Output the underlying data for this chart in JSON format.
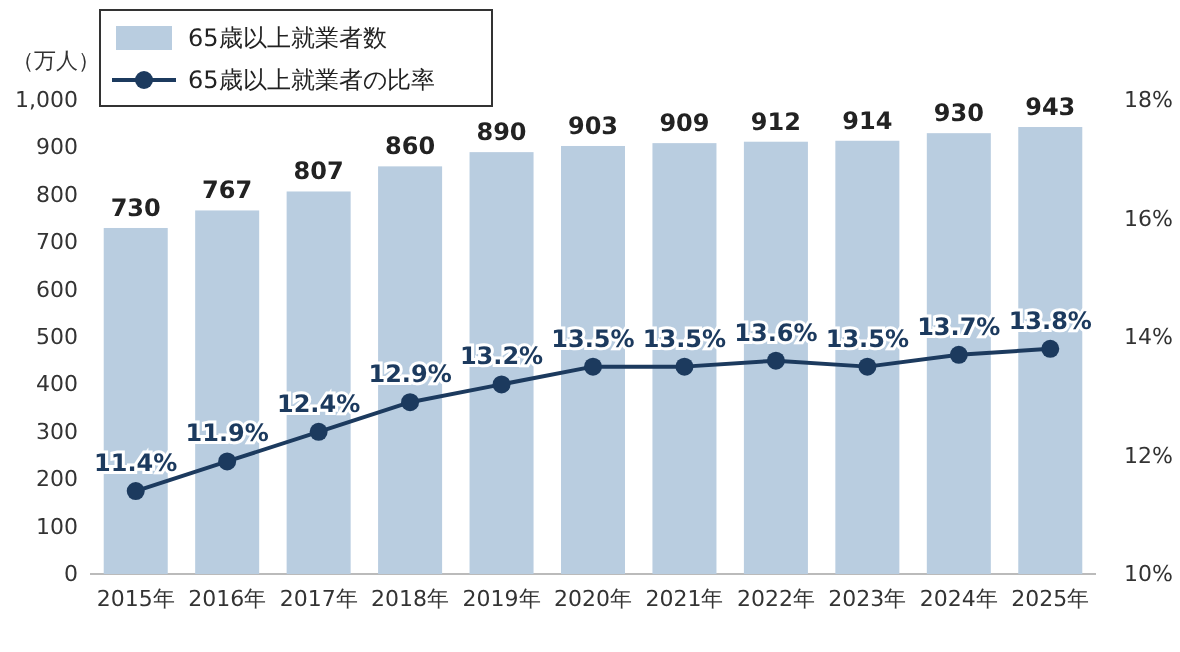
{
  "chart_data": {
    "type": "bar",
    "categories": [
      "2015年",
      "2016年",
      "2017年",
      "2018年",
      "2019年",
      "2020年",
      "2021年",
      "2022年",
      "2023年",
      "2024年",
      "2025年"
    ],
    "ylabel": "（万人）",
    "ylim": [
      0,
      1000
    ],
    "yticks": [
      0,
      100,
      200,
      300,
      400,
      500,
      600,
      700,
      800,
      900,
      {
        "value": 1000,
        "label": "1,000"
      }
    ],
    "y2lim": [
      10,
      18
    ],
    "y2ticks": [
      {
        "value": 10,
        "label": "10%"
      },
      {
        "value": 12,
        "label": "12%"
      },
      {
        "value": 14,
        "label": "14%"
      },
      {
        "value": 16,
        "label": "16%"
      },
      {
        "value": 18,
        "label": "18%"
      }
    ],
    "legend": "top left",
    "marker": "circle",
    "series": [
      {
        "name": "65歳以上就業者数",
        "color": "#b9cde0",
        "values": [
          730,
          767,
          807,
          860,
          890,
          903,
          909,
          912,
          914,
          930,
          943
        ],
        "value_labels": [
          "730",
          "767",
          "807",
          "860",
          "890",
          "903",
          "909",
          "912",
          "914",
          "930",
          "943"
        ]
      },
      {
        "name": "65歳以上就業者の比率",
        "type": "line",
        "axis": "y2",
        "color": "#1c3a5e",
        "values": [
          11.4,
          11.9,
          12.4,
          12.9,
          13.2,
          13.5,
          13.5,
          13.6,
          13.5,
          13.7,
          13.8
        ],
        "value_labels": [
          "11.4%",
          "11.9%",
          "12.4%",
          "12.9%",
          "13.2%",
          "13.5%",
          "13.5%",
          "13.6%",
          "13.5%",
          "13.7%",
          "13.8%"
        ]
      }
    ]
  }
}
